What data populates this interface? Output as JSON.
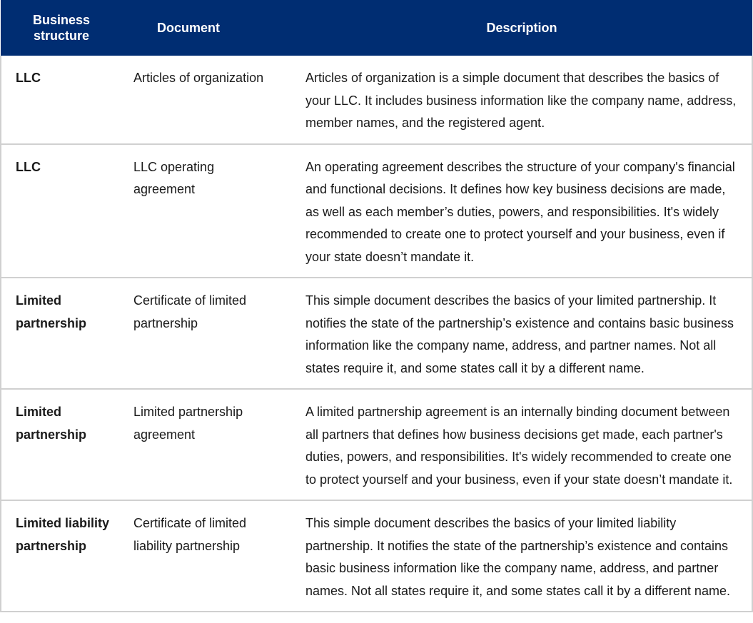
{
  "table": {
    "headers": {
      "structure_line1": "Business",
      "structure_line2": "structure",
      "document": "Document",
      "description": "Description"
    },
    "rows": [
      {
        "structure": "LLC",
        "document": "Articles of organization",
        "description": "Articles of organization is a simple document that describes the basics of your LLC. It includes business information like the company name, address, member names, and the registered agent."
      },
      {
        "structure": "LLC",
        "document": "LLC operating agreement",
        "description": "An operating agreement describes the structure of your company's financial and functional decisions. It defines how key business decisions are made, as well as each member’s duties, powers, and responsibilities. It's widely recommended to create one to protect yourself and your business, even if your state doesn’t mandate it."
      },
      {
        "structure": "Limited partnership",
        "document": "Certificate of limited partnership",
        "description": "This simple document describes the basics of your limited partnership. It notifies the state of the partnership’s existence and contains basic business information like the company name, address, and partner names. Not all states require it, and some states call it by a different name."
      },
      {
        "structure": "Limited partnership",
        "document": "Limited partnership agreement",
        "description": "A limited partnership agreement is an internally binding document between all partners that defines how business decisions get made, each partner's duties, powers, and responsibilities. It's widely recommended to create one to protect yourself and your business, even if your state doesn’t mandate it."
      },
      {
        "structure": "Limited liability partnership",
        "document": "Certificate of limited liability partnership",
        "description": "This simple document describes the basics of your limited liability partnership. It notifies the state of the partnership’s existence and contains basic business information like the company name, address, and partner names. Not all states require it, and some states call it by a different name."
      }
    ]
  },
  "colors": {
    "header_background": "#002d72",
    "header_text": "#ffffff",
    "row_border": "#d0d0d0"
  }
}
